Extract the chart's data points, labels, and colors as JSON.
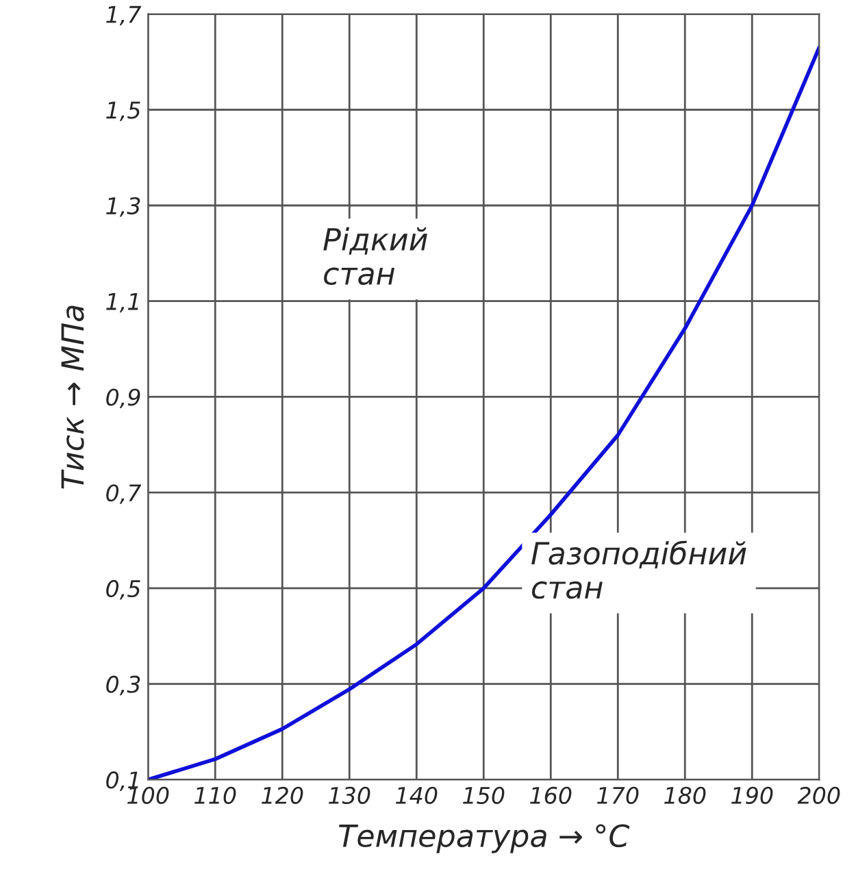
{
  "chart_data": {
    "type": "line",
    "xlabel": "Температура → °С",
    "ylabel": "Тиск → МПа",
    "x": [
      100,
      110,
      120,
      130,
      140,
      150,
      160,
      170,
      180,
      190,
      200
    ],
    "series": [
      {
        "color": "#1010d8",
        "values": [
          0.1,
          0.143,
          0.206,
          0.289,
          0.383,
          0.5,
          0.654,
          0.82,
          1.043,
          1.3,
          1.63
        ]
      }
    ],
    "xlim": [
      100,
      200
    ],
    "xticks": [
      100,
      110,
      120,
      130,
      140,
      150,
      160,
      170,
      180,
      190,
      200
    ],
    "ylim": [
      0.1,
      1.7
    ],
    "yticks": [
      {
        "value": 0.1,
        "label": "0,1"
      },
      {
        "value": 0.3,
        "label": "0,3"
      },
      {
        "value": 0.5,
        "label": "0,5"
      },
      {
        "value": 0.7,
        "label": "0,7"
      },
      {
        "value": 0.9,
        "label": "0,9"
      },
      {
        "value": 1.1,
        "label": "1,1"
      },
      {
        "value": 1.3,
        "label": "1,3"
      },
      {
        "value": 1.5,
        "label": "1,5"
      },
      {
        "value": 1.7,
        "label": "1,7"
      }
    ],
    "annotations": [
      "Рідкий\nстан",
      "Газоподібний\nстан"
    ],
    "grid": true,
    "marker": "none",
    "line_style": "solid"
  }
}
